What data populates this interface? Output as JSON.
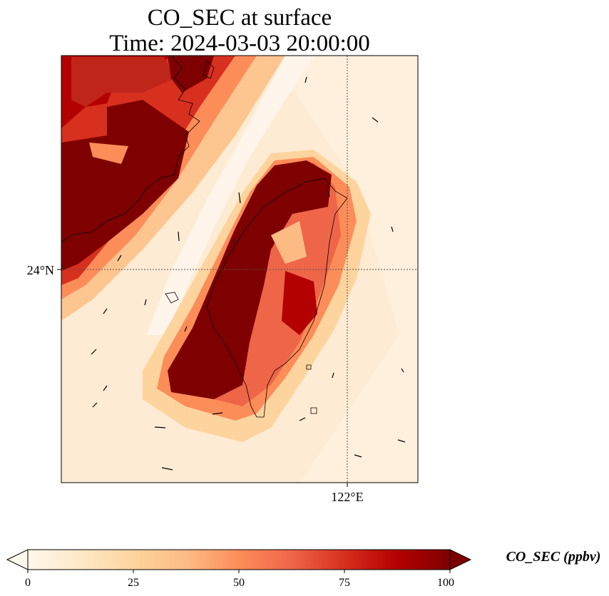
{
  "title": {
    "line1": "CO_SEC at surface",
    "line2": "Time: 2024-03-03 20:00:00"
  },
  "map": {
    "lat_label": "24°N",
    "lon_label": "122°E",
    "gridlines": "dotted"
  },
  "colorbar": {
    "label": "CO_SEC (ppbv)",
    "ticks": [
      "0",
      "25",
      "50",
      "75",
      "100"
    ],
    "range": [
      0,
      100
    ],
    "extend": "both",
    "colormap": "OrRd",
    "colors": [
      "#fff7ec",
      "#fee8c8",
      "#fdd49e",
      "#fdbb84",
      "#fc8d59",
      "#ef6548",
      "#d7301f",
      "#b30000",
      "#7f0000"
    ]
  }
}
